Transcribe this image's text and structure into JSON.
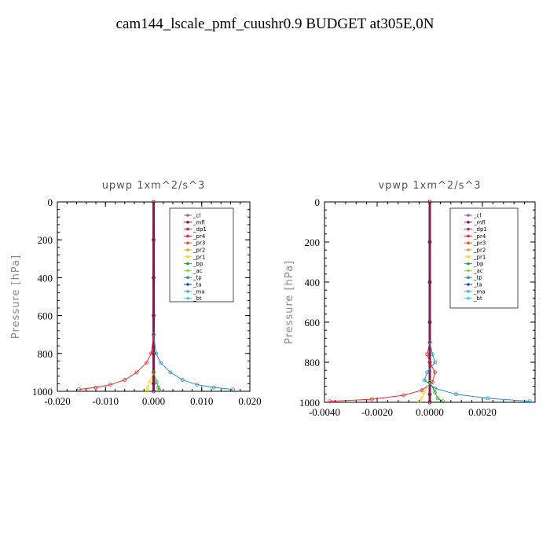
{
  "title": "cam144_lscale_pmf_cuushr0.9  BUDGET at305E,0N",
  "legend_entries": [
    {
      "name": "_cl",
      "color": "#9b59b6"
    },
    {
      "name": "_mfl",
      "color": "#7b1f4f"
    },
    {
      "name": "_dp1",
      "color": "#c0264a"
    },
    {
      "name": "_pr4",
      "color": "#e8262a"
    },
    {
      "name": "_pr3",
      "color": "#f04a3c"
    },
    {
      "name": "_pr2",
      "color": "#f39c2a"
    },
    {
      "name": "_pr1",
      "color": "#f7d23a"
    },
    {
      "name": "_bp",
      "color": "#2aa02a"
    },
    {
      "name": "_ac",
      "color": "#8fd14f"
    },
    {
      "name": "_tp",
      "color": "#2b8cbe"
    },
    {
      "name": "_ta",
      "color": "#1f3fbf"
    },
    {
      "name": "_ma",
      "color": "#3fa9f5"
    },
    {
      "name": "_bt",
      "color": "#1fe0e0"
    }
  ],
  "chart_data": [
    {
      "type": "line",
      "title": "upwp   1xm^2/s^3",
      "xlabel": "",
      "ylabel": "Pressure [hPa]",
      "xlim": [
        -0.02,
        0.02
      ],
      "ylim": [
        1000,
        0
      ],
      "xticks": [
        -0.02,
        -0.01,
        0.0,
        0.01,
        0.02
      ],
      "xtick_labels": [
        "-0.020",
        "-0.010",
        "0.000",
        "0.010",
        "0.020"
      ],
      "yticks": [
        0,
        200,
        400,
        600,
        800,
        1000
      ],
      "ytick_labels": [
        "0",
        "200",
        "400",
        "600",
        "800",
        "1000"
      ],
      "legend_position": "top-right",
      "series": [
        {
          "name": "_cl",
          "points": [
            [
              0.0,
              0
            ],
            [
              0.0,
              200
            ],
            [
              0.0,
              400
            ],
            [
              0.0,
              600
            ],
            [
              0.0,
              800
            ],
            [
              0.0,
              900
            ],
            [
              0.0,
              960
            ],
            [
              0.0,
              1000
            ]
          ]
        },
        {
          "name": "_mfl",
          "points": [
            [
              0.0,
              0
            ],
            [
              0.0,
              200
            ],
            [
              0.0,
              400
            ],
            [
              0.0,
              600
            ],
            [
              0.0,
              800
            ],
            [
              0.0,
              900
            ],
            [
              0.0,
              960
            ],
            [
              0.0,
              1000
            ]
          ]
        },
        {
          "name": "_pr4",
          "points": [
            [
              0.0,
              700
            ],
            [
              -0.0005,
              800
            ],
            [
              -0.0015,
              850
            ],
            [
              -0.0035,
              900
            ],
            [
              -0.006,
              940
            ],
            [
              -0.009,
              965
            ],
            [
              -0.012,
              980
            ],
            [
              -0.0155,
              990
            ]
          ]
        },
        {
          "name": "_pr1",
          "points": [
            [
              0.0,
              900
            ],
            [
              -0.0008,
              950
            ],
            [
              -0.0012,
              980
            ],
            [
              -0.0015,
              995
            ]
          ]
        },
        {
          "name": "_bp",
          "points": [
            [
              0.0,
              900
            ],
            [
              0.0006,
              950
            ],
            [
              0.001,
              980
            ],
            [
              0.0012,
              995
            ]
          ]
        },
        {
          "name": "_tp",
          "points": [
            [
              0.0,
              700
            ],
            [
              0.0005,
              800
            ],
            [
              0.0015,
              850
            ],
            [
              0.0035,
              900
            ],
            [
              0.006,
              940
            ],
            [
              0.009,
              965
            ],
            [
              0.0125,
              980
            ],
            [
              0.0165,
              990
            ]
          ]
        }
      ]
    },
    {
      "type": "line",
      "title": "vpwp   1xm^2/s^3",
      "xlabel": "",
      "ylabel": "Pressure [hPa]",
      "xlim": [
        -0.004,
        0.004
      ],
      "ylim": [
        1000,
        0
      ],
      "xticks": [
        -0.004,
        -0.002,
        0.0,
        0.002
      ],
      "xtick_labels": [
        "-0.0040",
        "-0.0020",
        "0.0000",
        "0.0020"
      ],
      "yticks": [
        0,
        200,
        400,
        600,
        800,
        1000
      ],
      "ytick_labels": [
        "0",
        "200",
        "400",
        "600",
        "800",
        "1000"
      ],
      "legend_position": "top-right",
      "series": [
        {
          "name": "_cl",
          "points": [
            [
              0.0,
              0
            ],
            [
              0.0,
              200
            ],
            [
              0.0,
              400
            ],
            [
              0.0,
              600
            ],
            [
              0.0,
              800
            ],
            [
              0.0,
              900
            ],
            [
              0.0,
              960
            ],
            [
              0.0,
              1000
            ]
          ]
        },
        {
          "name": "_mfl",
          "points": [
            [
              0.0,
              0
            ],
            [
              0.0,
              200
            ],
            [
              0.0,
              400
            ],
            [
              0.0,
              600
            ],
            [
              0.0,
              800
            ],
            [
              0.0,
              900
            ],
            [
              0.0,
              960
            ],
            [
              0.0,
              1000
            ]
          ]
        },
        {
          "name": "_pr4",
          "points": [
            [
              0.0,
              700
            ],
            [
              -0.0001,
              760
            ],
            [
              0.0,
              800
            ],
            [
              0.0002,
              850
            ],
            [
              0.0001,
              900
            ],
            [
              -0.0003,
              940
            ],
            [
              -0.001,
              965
            ],
            [
              -0.0022,
              985
            ],
            [
              -0.0038,
              995
            ]
          ]
        },
        {
          "name": "_pr1",
          "points": [
            [
              0.0,
              900
            ],
            [
              -0.0002,
              950
            ],
            [
              -0.0003,
              980
            ],
            [
              -0.0004,
              995
            ]
          ]
        },
        {
          "name": "_bp",
          "points": [
            [
              0.0,
              900
            ],
            [
              0.0002,
              950
            ],
            [
              0.0003,
              980
            ],
            [
              0.0005,
              995
            ]
          ]
        },
        {
          "name": "_tp",
          "points": [
            [
              0.0,
              700
            ],
            [
              0.0001,
              760
            ],
            [
              0.0002,
              800
            ],
            [
              -0.0001,
              850
            ],
            [
              -0.0002,
              890
            ],
            [
              0.0002,
              930
            ],
            [
              0.001,
              960
            ],
            [
              0.0022,
              980
            ],
            [
              0.0038,
              995
            ]
          ]
        }
      ]
    }
  ]
}
